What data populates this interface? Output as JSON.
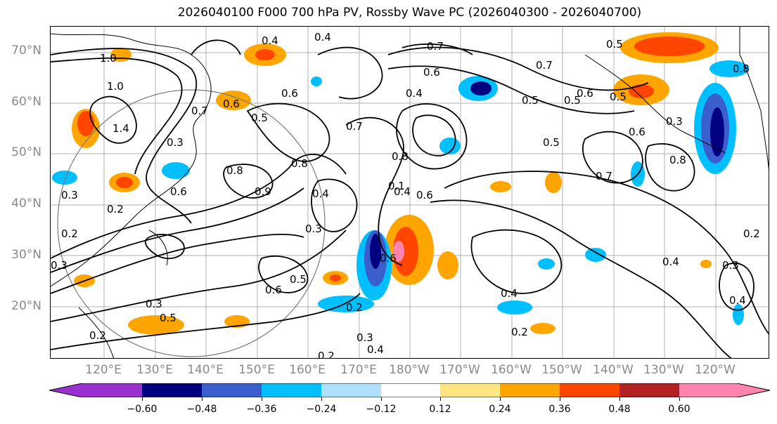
{
  "title": "2026040100 F000 700 hPa PV, Rossby Wave PC (2026040300 - 2026040700)",
  "lat_labels": [
    "70°N",
    "60°N",
    "50°N",
    "40°N",
    "30°N",
    "20°N"
  ],
  "lon_labels": [
    "120°E",
    "130°E",
    "140°E",
    "150°E",
    "160°E",
    "170°E",
    "180°W",
    "170°W",
    "160°W",
    "150°W",
    "140°W",
    "130°W",
    "120°W"
  ],
  "colorbar": {
    "ticks": [
      "−0.60",
      "−0.48",
      "−0.36",
      "−0.24",
      "−0.12",
      "0.12",
      "0.24",
      "0.36",
      "0.48",
      "0.60"
    ],
    "colors": [
      "#9b30d0",
      "#000080",
      "#3a5fcd",
      "#00bfff",
      "#b0e0ff",
      "#ffffff",
      "#ffe680",
      "#ffa500",
      "#ff4500",
      "#b22222",
      "#ff85b0"
    ]
  },
  "contour_labels": [
    "1.4",
    "1.0",
    "1.0",
    "0.3",
    "0.3",
    "0.2",
    "0.3",
    "0.2",
    "0.3",
    "0.2",
    "0.5",
    "0.6",
    "0.6",
    "0.7",
    "0.4",
    "0.4",
    "0.5",
    "0.6",
    "0.8",
    "0.9",
    "0.8",
    "0.4",
    "0.3",
    "0.5",
    "0.6",
    "0.7",
    "0.4",
    "0.6",
    "0.6",
    "0.4",
    "0.7",
    "0.8",
    "0.1",
    "0.6",
    "0.2",
    "0.3",
    "0.4",
    "0.2",
    "0.5",
    "0.7",
    "0.5",
    "0.6",
    "0.5",
    "0.7",
    "0.5",
    "0.5",
    "0.6",
    "0.3",
    "0.8",
    "0.4",
    "0.2",
    "0.4",
    "0.2",
    "0.3",
    "0.4",
    "0.8"
  ]
}
